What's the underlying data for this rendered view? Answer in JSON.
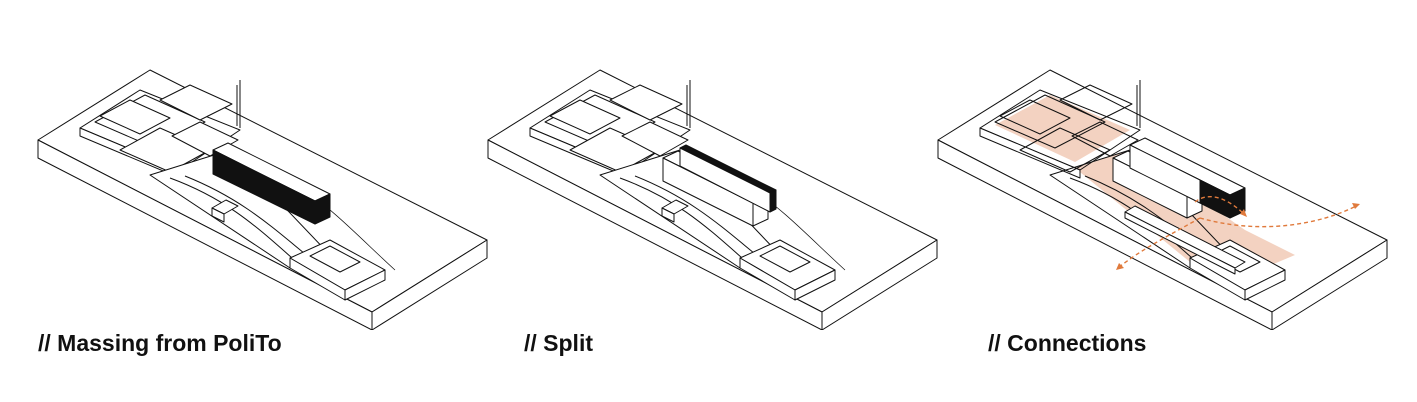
{
  "panels": [
    {
      "caption": "// Massing from PoliTo"
    },
    {
      "caption": "// Split"
    },
    {
      "caption": "// Connections"
    }
  ],
  "colors": {
    "line": "#111111",
    "fill": "#ffffff",
    "solid": "#111111",
    "accent_fill": "#f3d2c1",
    "accent_line": "#e07a3c"
  }
}
